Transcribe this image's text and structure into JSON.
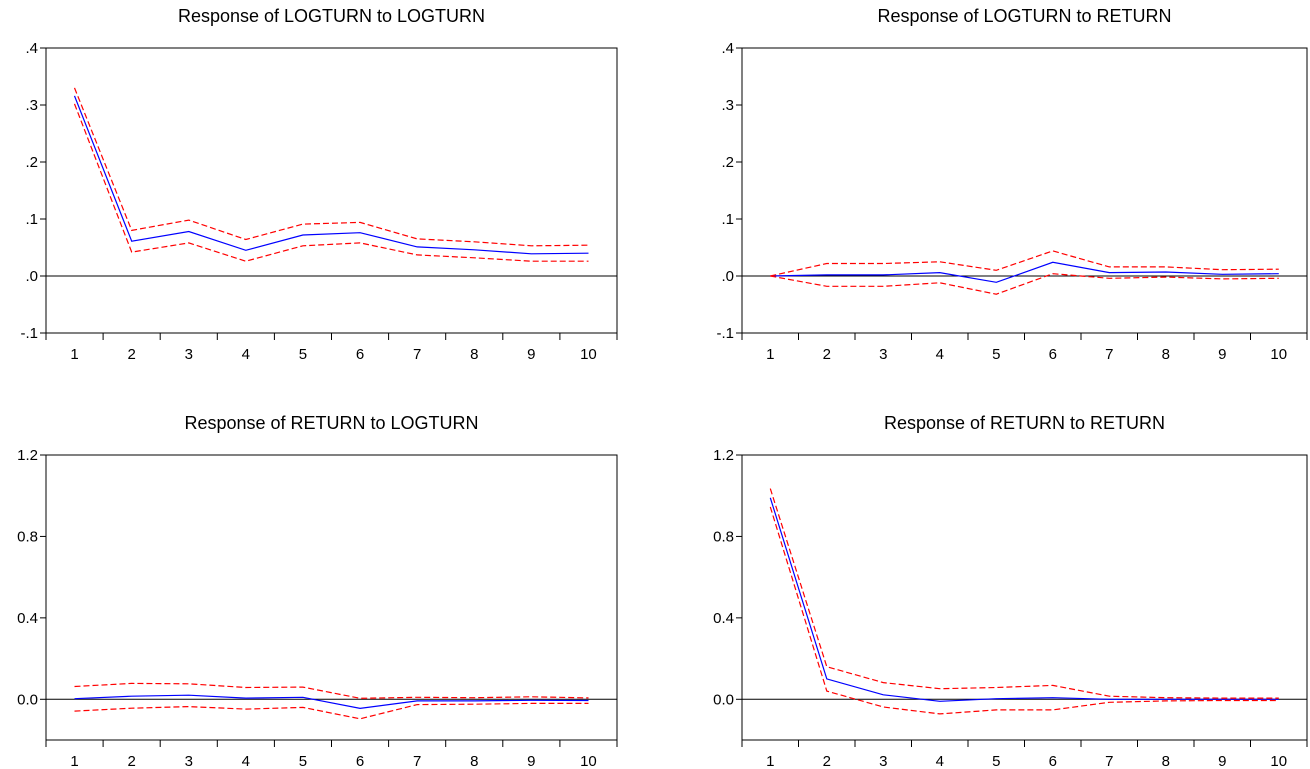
{
  "chart_data": [
    {
      "type": "line",
      "title": "Response of LOGTURN to LOGTURN",
      "categories": [
        "1",
        "2",
        "3",
        "4",
        "5",
        "6",
        "7",
        "8",
        "9",
        "10"
      ],
      "yticks": [
        ".4",
        ".3",
        ".2",
        ".1",
        ".0",
        "-.1"
      ],
      "ytick_values": [
        0.4,
        0.3,
        0.2,
        0.1,
        0.0,
        -0.1
      ],
      "ylim": [
        -0.1,
        0.4
      ],
      "zero_line": true,
      "series": [
        {
          "role": "response",
          "color": "#0000ff",
          "dashed": false,
          "values": [
            0.316,
            0.061,
            0.078,
            0.045,
            0.072,
            0.076,
            0.051,
            0.046,
            0.039,
            0.04
          ]
        },
        {
          "role": "upper band",
          "color": "#ff0000",
          "dashed": true,
          "values": [
            0.33,
            0.08,
            0.098,
            0.064,
            0.091,
            0.094,
            0.065,
            0.06,
            0.053,
            0.054
          ]
        },
        {
          "role": "lower band",
          "color": "#ff0000",
          "dashed": true,
          "values": [
            0.302,
            0.042,
            0.058,
            0.026,
            0.053,
            0.058,
            0.037,
            0.032,
            0.026,
            0.026
          ]
        }
      ]
    },
    {
      "type": "line",
      "title": "Response of LOGTURN to RETURN",
      "categories": [
        "1",
        "2",
        "3",
        "4",
        "5",
        "6",
        "7",
        "8",
        "9",
        "10"
      ],
      "yticks": [
        ".4",
        ".3",
        ".2",
        ".1",
        ".0",
        "-.1"
      ],
      "ytick_values": [
        0.4,
        0.3,
        0.2,
        0.1,
        0.0,
        -0.1
      ],
      "ylim": [
        -0.1,
        0.4
      ],
      "zero_line": true,
      "series": [
        {
          "role": "response",
          "color": "#0000ff",
          "dashed": false,
          "values": [
            0.0,
            0.002,
            0.002,
            0.006,
            -0.011,
            0.024,
            0.006,
            0.007,
            0.003,
            0.004
          ]
        },
        {
          "role": "upper band",
          "color": "#ff0000",
          "dashed": true,
          "values": [
            0.0,
            0.022,
            0.022,
            0.025,
            0.01,
            0.044,
            0.016,
            0.016,
            0.011,
            0.012
          ]
        },
        {
          "role": "lower band",
          "color": "#ff0000",
          "dashed": true,
          "values": [
            0.0,
            -0.018,
            -0.018,
            -0.012,
            -0.032,
            0.004,
            -0.004,
            -0.002,
            -0.005,
            -0.004
          ]
        }
      ]
    },
    {
      "type": "line",
      "title": "Response of RETURN to LOGTURN",
      "categories": [
        "1",
        "2",
        "3",
        "4",
        "5",
        "6",
        "7",
        "8",
        "9",
        "10"
      ],
      "yticks": [
        "1.2",
        "0.8",
        "0.4",
        "0.0"
      ],
      "ytick_values": [
        1.2,
        0.8,
        0.4,
        0.0
      ],
      "ylim": [
        -0.2,
        1.2
      ],
      "zero_line": true,
      "series": [
        {
          "role": "response",
          "color": "#0000ff",
          "dashed": false,
          "values": [
            0.003,
            0.015,
            0.02,
            0.006,
            0.01,
            -0.045,
            -0.008,
            -0.008,
            -0.005,
            -0.006
          ]
        },
        {
          "role": "upper band",
          "color": "#ff0000",
          "dashed": true,
          "values": [
            0.063,
            0.078,
            0.076,
            0.058,
            0.06,
            0.005,
            0.01,
            0.008,
            0.012,
            0.007
          ]
        },
        {
          "role": "lower band",
          "color": "#ff0000",
          "dashed": true,
          "values": [
            -0.058,
            -0.044,
            -0.036,
            -0.048,
            -0.04,
            -0.096,
            -0.026,
            -0.024,
            -0.02,
            -0.02
          ]
        }
      ]
    },
    {
      "type": "line",
      "title": "Response of RETURN to RETURN",
      "categories": [
        "1",
        "2",
        "3",
        "4",
        "5",
        "6",
        "7",
        "8",
        "9",
        "10"
      ],
      "yticks": [
        "1.2",
        "0.8",
        "0.4",
        "0.0"
      ],
      "ytick_values": [
        1.2,
        0.8,
        0.4,
        0.0
      ],
      "ylim": [
        -0.2,
        1.2
      ],
      "zero_line": true,
      "series": [
        {
          "role": "response",
          "color": "#0000ff",
          "dashed": false,
          "values": [
            0.99,
            0.1,
            0.022,
            -0.01,
            0.003,
            0.008,
            0.0,
            0.0,
            0.0,
            0.0
          ]
        },
        {
          "role": "upper band",
          "color": "#ff0000",
          "dashed": true,
          "values": [
            1.035,
            0.16,
            0.082,
            0.052,
            0.058,
            0.068,
            0.015,
            0.008,
            0.006,
            0.006
          ]
        },
        {
          "role": "lower band",
          "color": "#ff0000",
          "dashed": true,
          "values": [
            0.945,
            0.04,
            -0.038,
            -0.072,
            -0.052,
            -0.052,
            -0.015,
            -0.008,
            -0.006,
            -0.006
          ]
        }
      ]
    }
  ]
}
